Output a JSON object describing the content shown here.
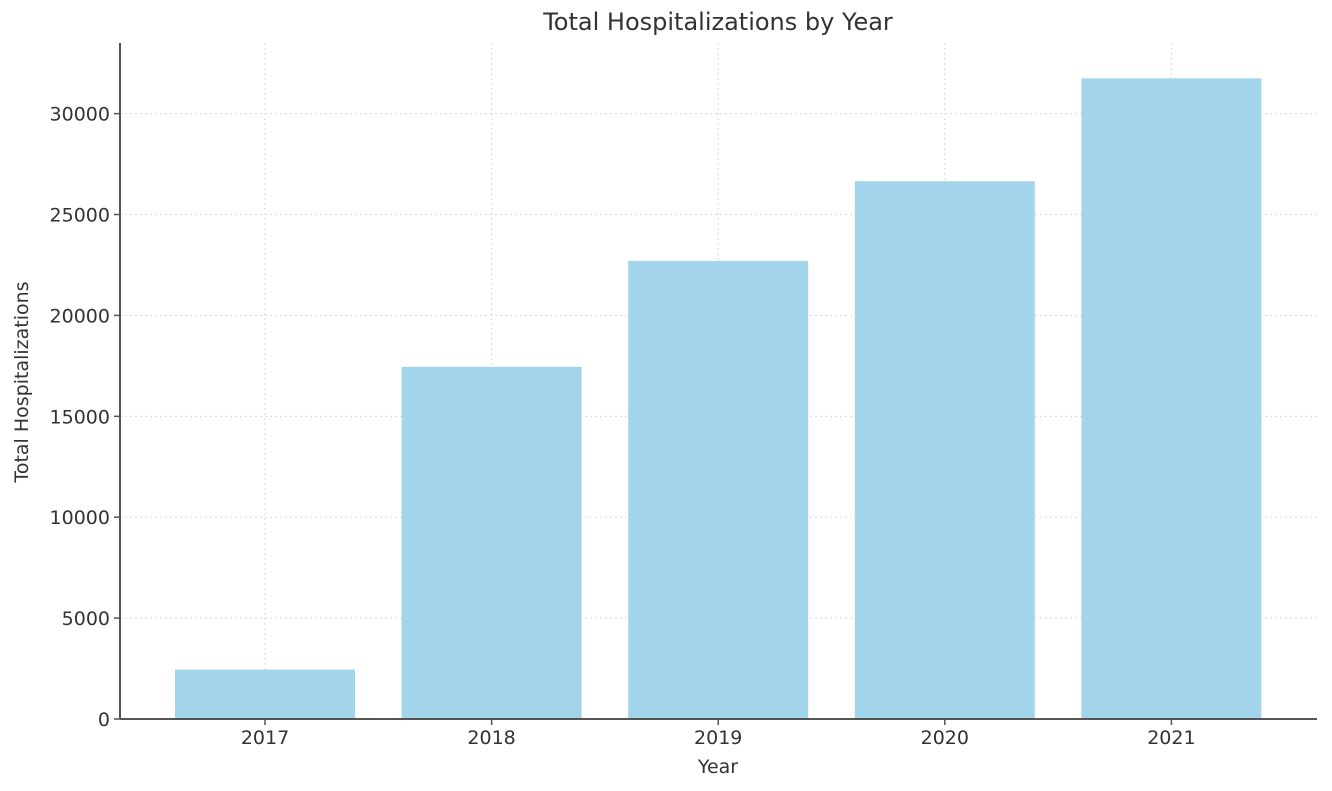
{
  "chart_data": {
    "type": "bar",
    "title": "Total Hospitalizations by Year",
    "xlabel": "Year",
    "ylabel": "Total Hospitalizations",
    "categories": [
      "2017",
      "2018",
      "2019",
      "2020",
      "2021"
    ],
    "values": [
      2450,
      17450,
      22700,
      26650,
      31750
    ],
    "ylim": [
      0,
      33500
    ],
    "yticks": [
      0,
      5000,
      10000,
      15000,
      20000,
      25000,
      30000
    ],
    "ytick_labels": [
      "0",
      "5000",
      "10000",
      "15000",
      "20000",
      "25000",
      "30000"
    ],
    "grid": true,
    "bar_color": "#a2d5ec",
    "legend": false
  }
}
